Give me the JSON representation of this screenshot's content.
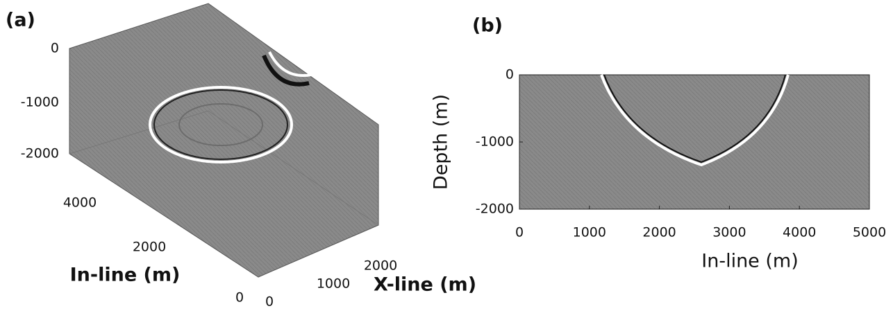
{
  "panels": [
    {
      "label": "(a)",
      "depth_ticks": [
        0,
        -1000,
        -2000
      ],
      "inline_ticks": [
        4000,
        2000,
        0
      ],
      "xline_ticks": [
        0,
        1000,
        2000
      ],
      "inline_label": "In-line (m)",
      "xline_label": "X-line (m)"
    },
    {
      "label": "(b)",
      "xlim": [
        0,
        5000
      ],
      "xticks": [
        0,
        1000,
        2000,
        3000,
        4000,
        5000
      ],
      "ylim": [
        -2000,
        0
      ],
      "yticks": [
        0,
        -1000,
        -2000
      ],
      "xlabel": "In-line (m)",
      "ylabel": "Depth (m)"
    }
  ]
}
